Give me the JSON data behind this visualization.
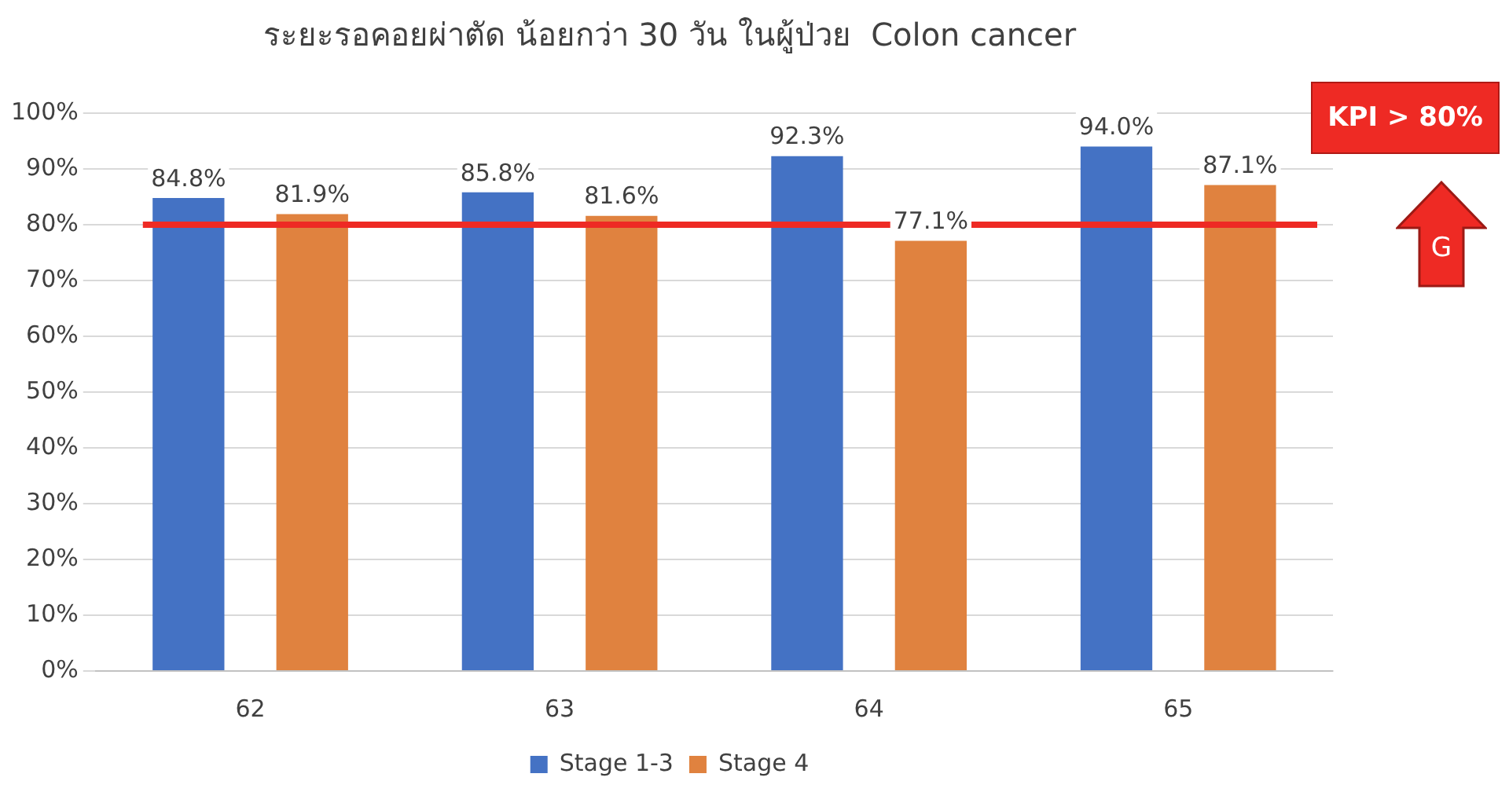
{
  "chart_data": {
    "type": "bar",
    "title": "ระยะรอคอยผ่าตัด น้อยกว่า 30 วัน ในผู้ป่วย  Colon cancer",
    "categories": [
      "62",
      "63",
      "64",
      "65"
    ],
    "series": [
      {
        "name": "Stage 1-3",
        "color": "#4472c4",
        "values": [
          84.8,
          85.8,
          92.3,
          94.0
        ],
        "value_labels": [
          "84.8%",
          "85.8%",
          "92.3%",
          "94.0%"
        ]
      },
      {
        "name": "Stage 4",
        "color": "#e0823f",
        "values": [
          81.9,
          81.6,
          77.1,
          87.1
        ],
        "value_labels": [
          "81.9%",
          "81.6%",
          "77.1%",
          "87.1%"
        ]
      }
    ],
    "ylim": [
      0,
      100
    ],
    "yticks": [
      {
        "value": 0,
        "label": "0%"
      },
      {
        "value": 10,
        "label": "10%"
      },
      {
        "value": 20,
        "label": "20%"
      },
      {
        "value": 30,
        "label": "30%"
      },
      {
        "value": 40,
        "label": "40%"
      },
      {
        "value": 50,
        "label": "50%"
      },
      {
        "value": 60,
        "label": "60%"
      },
      {
        "value": 70,
        "label": "70%"
      },
      {
        "value": 80,
        "label": "80%"
      },
      {
        "value": 90,
        "label": "90%"
      },
      {
        "value": 100,
        "label": "100%"
      }
    ],
    "ref_lines": [
      {
        "axis": "y",
        "value": 80,
        "color": "#ee2a24"
      }
    ],
    "annotations": [
      "KPI > 80%",
      "G"
    ],
    "grid": "y",
    "legend": "bottom"
  }
}
